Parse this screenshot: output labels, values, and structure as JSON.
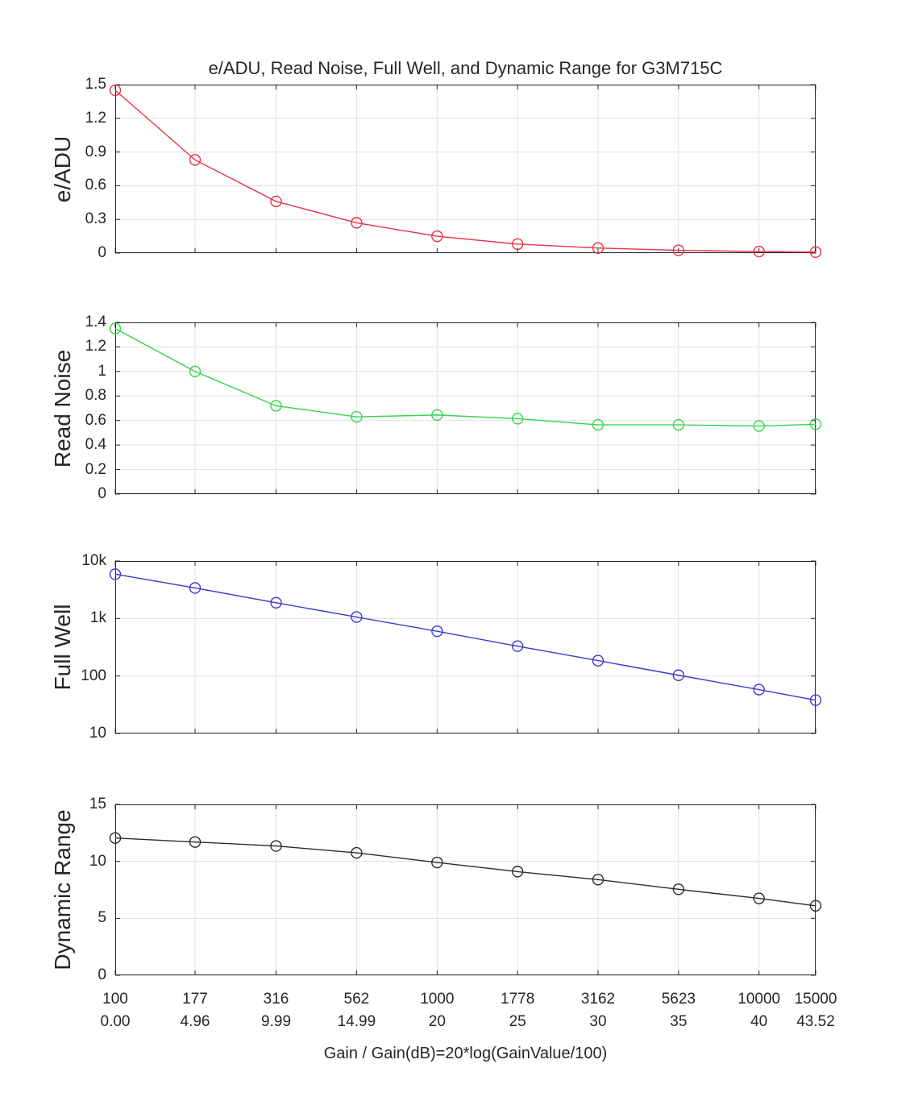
{
  "colors": {
    "grid": "#e0e0e0",
    "axis": "#262626",
    "text": "#262626",
    "series_red": "#e83347",
    "series_green": "#33d54b",
    "series_blue": "#3a3acd",
    "series_black": "#2b2b2b"
  },
  "chart_data": {
    "type": "line",
    "title": "e/ADU, Read Noise, Full Well, and Dynamic Range for G3M715C",
    "xlabel": "Gain / Gain(dB)=20*log(GainValue/100)",
    "xscale": "log",
    "xlim": [
      100,
      15000
    ],
    "x": [
      100,
      177,
      316,
      562,
      1000,
      1778,
      3162,
      5623,
      10000,
      15000
    ],
    "x_tick_labels_gain": [
      "100",
      "177",
      "316",
      "562",
      "1000",
      "1778",
      "3162",
      "5623",
      "10000",
      "15000"
    ],
    "x_tick_labels_db": [
      "0.00",
      "4.96",
      "9.99",
      "14.99",
      "20",
      "25",
      "30",
      "35",
      "40",
      "43.52"
    ],
    "grid": true,
    "legend": "none",
    "subplots": [
      {
        "name": "e-adu",
        "ylabel": "e/ADU",
        "color": "#e83347",
        "yscale": "linear",
        "ylim": [
          0,
          1.5
        ],
        "yticks": [
          0,
          0.3,
          0.6,
          0.9,
          1.2,
          1.5
        ],
        "ytick_labels": [
          "0",
          "0.3",
          "0.6",
          "0.9",
          "1.2",
          "1.5"
        ],
        "values": [
          1.45,
          0.83,
          0.46,
          0.27,
          0.15,
          0.08,
          0.045,
          0.025,
          0.014,
          0.009
        ]
      },
      {
        "name": "read-noise",
        "ylabel": "Read Noise",
        "color": "#33d54b",
        "yscale": "linear",
        "ylim": [
          0,
          1.4
        ],
        "yticks": [
          0,
          0.2,
          0.4,
          0.6,
          0.8,
          1,
          1.2,
          1.4
        ],
        "ytick_labels": [
          "0",
          "0.2",
          "0.4",
          "0.6",
          "0.8",
          "1",
          "1.2",
          "1.4"
        ],
        "values": [
          1.35,
          1.0,
          0.72,
          0.63,
          0.645,
          0.615,
          0.565,
          0.565,
          0.555,
          0.57
        ]
      },
      {
        "name": "full-well",
        "ylabel": "Full Well",
        "color": "#3a3acd",
        "yscale": "log",
        "ylim": [
          10,
          10000
        ],
        "yticks": [
          10,
          100,
          1000,
          10000
        ],
        "ytick_labels": [
          "10",
          "100",
          "1k",
          "10k"
        ],
        "values": [
          5900,
          3400,
          1880,
          1060,
          600,
          330,
          185,
          103,
          58,
          38
        ]
      },
      {
        "name": "dynamic-range",
        "ylabel": "Dynamic Range",
        "color": "#2b2b2b",
        "yscale": "linear",
        "ylim": [
          0,
          15
        ],
        "yticks": [
          0,
          5,
          10,
          15
        ],
        "ytick_labels": [
          "0",
          "5",
          "10",
          "15"
        ],
        "values": [
          12.05,
          11.7,
          11.35,
          10.75,
          9.9,
          9.1,
          8.4,
          7.55,
          6.75,
          6.1
        ]
      }
    ]
  }
}
